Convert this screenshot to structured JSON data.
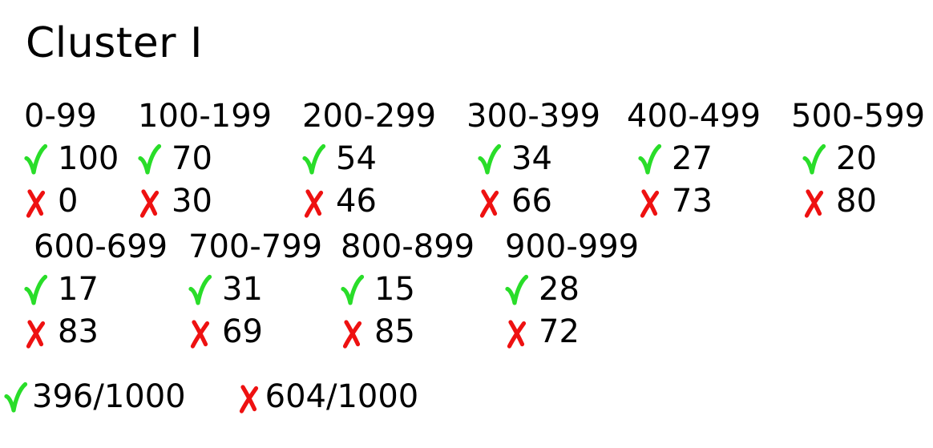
{
  "title": "Cluster I",
  "colors": {
    "check": "#29dd29",
    "cross": "#ee1111",
    "text": "#000000",
    "background": "#ffffff"
  },
  "chart_data": {
    "type": "table",
    "title": "Cluster I",
    "categories": [
      "0-99",
      "100-199",
      "200-299",
      "300-399",
      "400-499",
      "500-599",
      "600-699",
      "700-799",
      "800-899",
      "900-999"
    ],
    "series": [
      {
        "name": "pass",
        "icon": "check-icon",
        "values": [
          100,
          70,
          54,
          34,
          27,
          20,
          17,
          31,
          15,
          28
        ]
      },
      {
        "name": "fail",
        "icon": "cross-icon",
        "values": [
          0,
          30,
          46,
          66,
          73,
          80,
          83,
          69,
          85,
          72
        ]
      }
    ],
    "totals": {
      "pass": 396,
      "fail": 604,
      "total": 1000
    },
    "layout_hint": "two text rows of bins: 6 bins then 4 bins, pass line above fail line"
  },
  "totals_row": {
    "pass_label": "396/1000",
    "fail_label": "604/1000"
  }
}
